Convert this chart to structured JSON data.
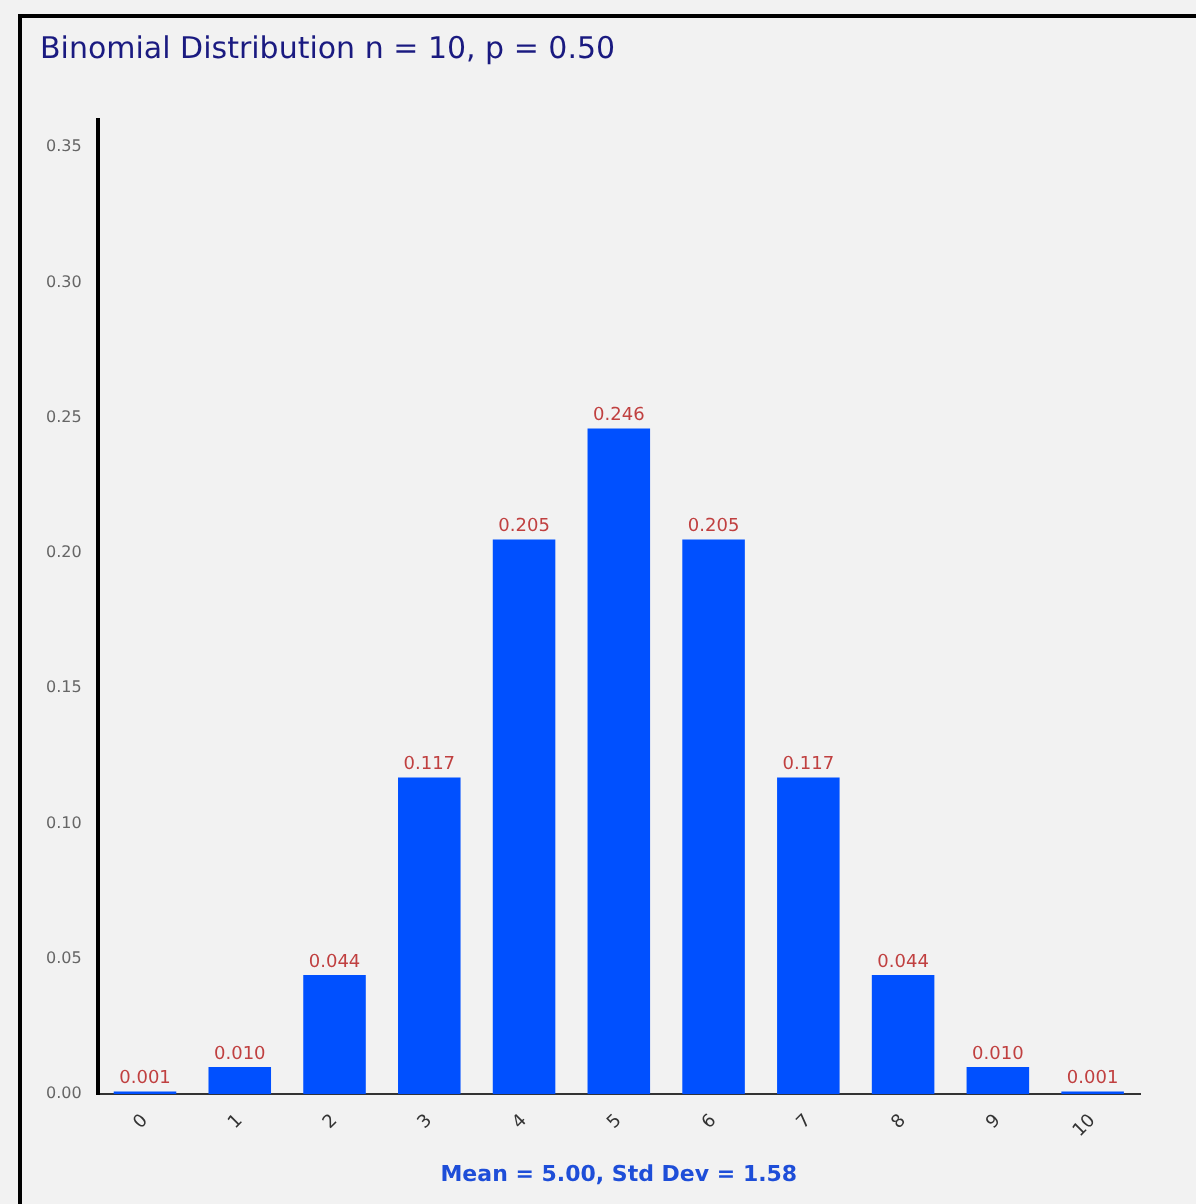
{
  "chart_data": {
    "type": "bar",
    "title": "Binomial Distribution n = 10, p = 0.50",
    "xlabel": "Mean = 5.00, Std Dev = 1.58",
    "categories": [
      "0",
      "1",
      "2",
      "3",
      "4",
      "5",
      "6",
      "7",
      "8",
      "9",
      "10"
    ],
    "values": [
      0.001,
      0.01,
      0.044,
      0.117,
      0.205,
      0.246,
      0.205,
      0.117,
      0.044,
      0.01,
      0.001
    ],
    "value_labels": [
      "0.001",
      "0.010",
      "0.044",
      "0.117",
      "0.205",
      "0.246",
      "0.205",
      "0.117",
      "0.044",
      "0.010",
      "0.001"
    ],
    "color": "#0050ff",
    "ylim": [
      0,
      0.36
    ],
    "yticks": [
      {
        "value": 0,
        "label": "0.00"
      },
      {
        "value": 0.05,
        "label": "0.05"
      },
      {
        "value": 0.1,
        "label": "0.10"
      },
      {
        "value": 0.15,
        "label": "0.15"
      },
      {
        "value": 0.2,
        "label": "0.20"
      },
      {
        "value": 0.25,
        "label": "0.25"
      },
      {
        "value": 0.3,
        "label": "0.30"
      },
      {
        "value": 0.35,
        "label": "0.35"
      }
    ],
    "grid": false,
    "legend": false
  }
}
